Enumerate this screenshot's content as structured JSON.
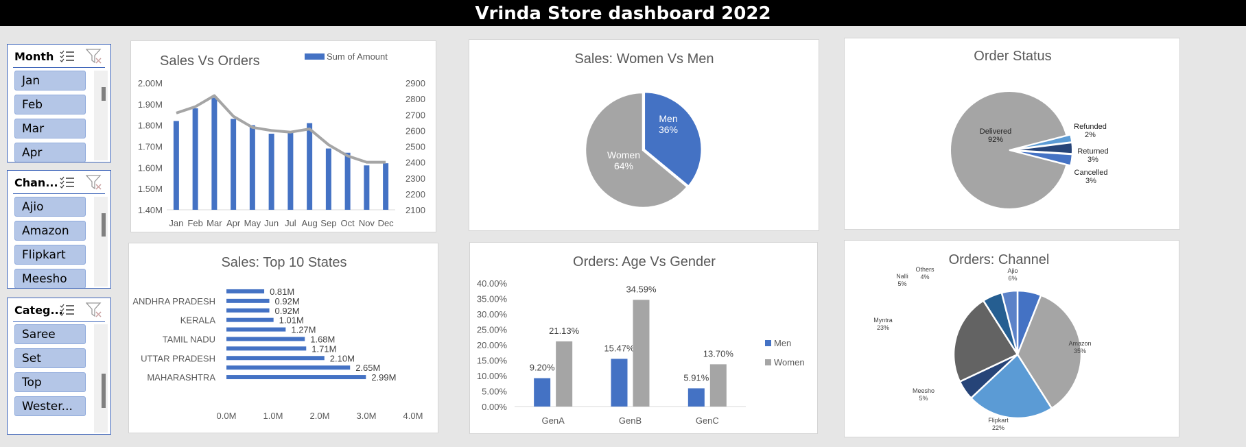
{
  "dashboard": {
    "title": "Vrinda Store dashboard 2022"
  },
  "slicers": [
    {
      "title": "Month",
      "items": [
        "Jan",
        "Feb",
        "Mar",
        "Apr"
      ]
    },
    {
      "title": "Chan...",
      "items": [
        "Ajio",
        "Amazon",
        "Flipkart",
        "Meesho"
      ]
    },
    {
      "title": "Categ...",
      "items": [
        "Saree",
        "Set",
        "Top",
        "Wester..."
      ]
    }
  ],
  "colors": {
    "blue": "#4472c4",
    "gray": "#a5a5a5",
    "darkblue": "#264478",
    "midblue": "#5b9bd5",
    "darkgray": "#636363",
    "steelblue": "#255e91"
  },
  "chart_data": [
    {
      "type": "bar",
      "title": "Sales Vs Orders",
      "legend": "Sum of Amount",
      "legend_position": "top-right",
      "categories": [
        "Jan",
        "Feb",
        "Mar",
        "Apr",
        "May",
        "Jun",
        "Jul",
        "Aug",
        "Sep",
        "Oct",
        "Nov",
        "Dec"
      ],
      "series": [
        {
          "name": "Sum of Amount",
          "type": "bar",
          "axis": "left",
          "values": [
            1.82,
            1.88,
            1.93,
            1.83,
            1.8,
            1.76,
            1.77,
            1.81,
            1.69,
            1.67,
            1.61,
            1.62
          ]
        },
        {
          "type": "line",
          "axis": "right",
          "values": [
            2710,
            2750,
            2820,
            2690,
            2620,
            2600,
            2590,
            2610,
            2510,
            2440,
            2400,
            2400
          ]
        }
      ],
      "ylim": [
        1.4,
        2.0
      ],
      "y_ticks": [
        "2.00M",
        "1.90M",
        "1.80M",
        "1.70M",
        "1.60M",
        "1.50M",
        "1.40M"
      ],
      "y2lim": [
        2100,
        2900
      ],
      "y2_ticks": [
        "2900",
        "2800",
        "2700",
        "2600",
        "2500",
        "2400",
        "2300",
        "2200",
        "2100"
      ],
      "grid": false
    },
    {
      "type": "pie",
      "title": "Sales: Women Vs Men",
      "slices": [
        {
          "label": "Men",
          "pct": "36%",
          "value": 36
        },
        {
          "label": "Women",
          "pct": "64%",
          "value": 64
        }
      ]
    },
    {
      "type": "pie",
      "title": "Order Status",
      "slices": [
        {
          "label": "Delivered",
          "pct": "92%",
          "value": 92
        },
        {
          "label": "Refunded",
          "pct": "2%",
          "value": 2
        },
        {
          "label": "Returned",
          "pct": "3%",
          "value": 3
        },
        {
          "label": "Cancelled",
          "pct": "3%",
          "value": 3
        }
      ]
    },
    {
      "type": "bar",
      "orientation": "horizontal",
      "title": "Sales: Top 10 States",
      "category_labels": [
        "ANDHRA PRADESH",
        "KERALA",
        "TAMIL NADU",
        "UTTAR PRADESH",
        "MAHARASHTRA"
      ],
      "values": [
        0.81,
        0.92,
        0.92,
        1.01,
        1.27,
        1.68,
        1.71,
        2.1,
        2.65,
        2.99
      ],
      "value_labels": [
        "0.81M",
        "0.92M",
        "0.92M",
        "1.01M",
        "1.27M",
        "1.68M",
        "1.71M",
        "2.10M",
        "2.65M",
        "2.99M"
      ],
      "x_ticks": [
        "0.0M",
        "1.0M",
        "2.0M",
        "3.0M",
        "4.0M"
      ],
      "xlim": [
        0,
        4
      ]
    },
    {
      "type": "bar",
      "title": "Orders: Age Vs Gender",
      "categories": [
        "GenA",
        "GenB",
        "GenC"
      ],
      "series": [
        {
          "name": "Men",
          "values": [
            9.2,
            15.47,
            5.91
          ],
          "labels": [
            "9.20%",
            "15.47%",
            "5.91%"
          ]
        },
        {
          "name": "Women",
          "values": [
            21.13,
            34.59,
            13.7
          ],
          "labels": [
            "21.13%",
            "34.59%",
            "13.70%"
          ]
        }
      ],
      "ylim": [
        0,
        40
      ],
      "y_ticks": [
        "40.00%",
        "35.00%",
        "30.00%",
        "25.00%",
        "20.00%",
        "15.00%",
        "10.00%",
        "5.00%",
        "0.00%"
      ],
      "legend_position": "right"
    },
    {
      "type": "pie",
      "title": "Orders: Channel",
      "slices": [
        {
          "label": "Ajio",
          "pct": "6%",
          "value": 6
        },
        {
          "label": "Amazon",
          "pct": "35%",
          "value": 35
        },
        {
          "label": "Flipkart",
          "pct": "22%",
          "value": 22
        },
        {
          "label": "Meesho",
          "pct": "5%",
          "value": 5
        },
        {
          "label": "Myntra",
          "pct": "23%",
          "value": 23
        },
        {
          "label": "Nalli",
          "pct": "5%",
          "value": 5
        },
        {
          "label": "Others",
          "pct": "4%",
          "value": 4
        }
      ]
    }
  ]
}
